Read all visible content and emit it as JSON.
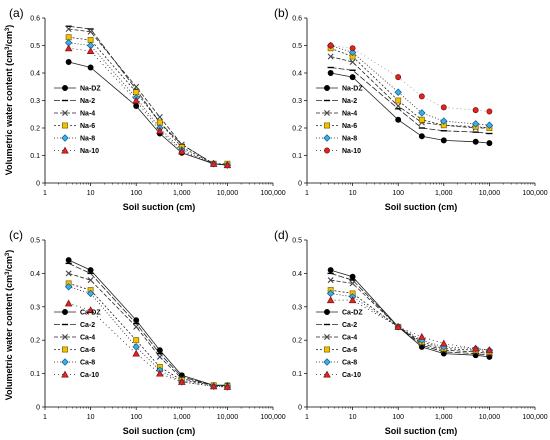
{
  "common": {
    "ylabel_text": "Volumetric water content (cm",
    "ylabel_sup": "3",
    "ylabel_mid": "/cm",
    "ylabel_end": ")",
    "xlabel": "Soil suction (cm)",
    "x_ticks": [
      "1",
      "10",
      "100",
      "1,000",
      "10,000",
      "100,000"
    ],
    "x_tick_values": [
      1,
      10,
      100,
      1000,
      10000,
      100000
    ],
    "xlim": [
      1,
      100000
    ],
    "x_scale": "log"
  },
  "colors": {
    "dz": "#000000",
    "s2": "#000000",
    "s4": "#444444",
    "s6_fill": "#f2c200",
    "s6_edge": "#806000",
    "s8_fill": "#3ab0e8",
    "s8_edge": "#105a90",
    "s10_fill": "#e02424",
    "s10_edge": "#801010"
  },
  "chart_data": [
    {
      "type": "scatter",
      "panel": "(a)",
      "ylim": [
        0,
        0.6
      ],
      "y_ticks": [
        "0",
        "0.1",
        "0.2",
        "0.3",
        "0.4",
        "0.5",
        "0.6"
      ],
      "x": [
        3.3,
        10,
        100,
        330,
        1000,
        5000,
        10000
      ],
      "series": [
        {
          "name": "Na-DZ",
          "values": [
            0.44,
            0.42,
            0.28,
            0.18,
            0.11,
            0.07,
            0.065
          ]
        },
        {
          "name": "Na-2",
          "values": [
            0.57,
            0.56,
            0.34,
            0.22,
            0.14,
            0.07,
            0.065
          ]
        },
        {
          "name": "Na-4",
          "values": [
            0.56,
            0.55,
            0.35,
            0.24,
            0.14,
            0.07,
            0.065
          ]
        },
        {
          "name": "Na-6",
          "values": [
            0.53,
            0.52,
            0.33,
            0.22,
            0.13,
            0.07,
            0.07
          ]
        },
        {
          "name": "Na-8",
          "values": [
            0.51,
            0.5,
            0.31,
            0.2,
            0.12,
            0.07,
            0.065
          ]
        },
        {
          "name": "Na-10",
          "values": [
            0.49,
            0.48,
            0.3,
            0.19,
            0.115,
            0.07,
            0.065
          ]
        }
      ],
      "legend_position": "bottom-left"
    },
    {
      "type": "scatter",
      "panel": "(b)",
      "ylim": [
        0,
        0.6
      ],
      "y_ticks": [
        "0",
        "0.1",
        "0.2",
        "0.3",
        "0.4",
        "0.5",
        "0.6"
      ],
      "x": [
        3.3,
        10,
        100,
        330,
        1000,
        5000,
        10000
      ],
      "series": [
        {
          "name": "Na-DZ",
          "values": [
            0.4,
            0.385,
            0.23,
            0.17,
            0.155,
            0.15,
            0.145
          ]
        },
        {
          "name": "Na-2",
          "values": [
            0.42,
            0.41,
            0.27,
            0.2,
            0.19,
            0.185,
            0.18
          ]
        },
        {
          "name": "Na-4",
          "values": [
            0.46,
            0.44,
            0.28,
            0.22,
            0.21,
            0.2,
            0.2
          ]
        },
        {
          "name": "Na-6",
          "values": [
            0.49,
            0.46,
            0.3,
            0.23,
            0.21,
            0.205,
            0.2
          ]
        },
        {
          "name": "Na-8",
          "values": [
            0.5,
            0.475,
            0.33,
            0.255,
            0.225,
            0.215,
            0.21
          ]
        },
        {
          "name": "Na-10",
          "values": [
            0.5,
            0.49,
            0.385,
            0.315,
            0.275,
            0.265,
            0.26
          ]
        }
      ],
      "legend_position": "bottom-left"
    },
    {
      "type": "scatter",
      "panel": "(c)",
      "ylim": [
        0,
        0.5
      ],
      "y_ticks": [
        "0",
        "0.1",
        "0.2",
        "0.3",
        "0.4",
        "0.5"
      ],
      "x": [
        3.3,
        10,
        100,
        330,
        1000,
        5000,
        10000
      ],
      "series": [
        {
          "name": "Ca-DZ",
          "values": [
            0.44,
            0.41,
            0.26,
            0.17,
            0.095,
            0.065,
            0.065
          ]
        },
        {
          "name": "Ca-2",
          "values": [
            0.43,
            0.4,
            0.25,
            0.16,
            0.09,
            0.065,
            0.065
          ]
        },
        {
          "name": "Ca-4",
          "values": [
            0.4,
            0.38,
            0.24,
            0.15,
            0.085,
            0.065,
            0.065
          ]
        },
        {
          "name": "Ca-6",
          "values": [
            0.37,
            0.35,
            0.2,
            0.12,
            0.08,
            0.065,
            0.062
          ]
        },
        {
          "name": "Ca-8",
          "values": [
            0.36,
            0.34,
            0.18,
            0.11,
            0.075,
            0.062,
            0.06
          ]
        },
        {
          "name": "Ca-10",
          "values": [
            0.31,
            0.29,
            0.16,
            0.1,
            0.075,
            0.062,
            0.06
          ]
        }
      ],
      "legend_position": "bottom-left"
    },
    {
      "type": "scatter",
      "panel": "(d)",
      "ylim": [
        0,
        0.5
      ],
      "y_ticks": [
        "0",
        "0.1",
        "0.2",
        "0.3",
        "0.4",
        "0.5"
      ],
      "x": [
        3.3,
        10,
        100,
        330,
        1000,
        5000,
        10000
      ],
      "series": [
        {
          "name": "Ca-DZ",
          "values": [
            0.41,
            0.39,
            0.24,
            0.18,
            0.16,
            0.155,
            0.15
          ]
        },
        {
          "name": "Ca-2",
          "values": [
            0.4,
            0.38,
            0.24,
            0.185,
            0.165,
            0.16,
            0.155
          ]
        },
        {
          "name": "Ca-4",
          "values": [
            0.38,
            0.37,
            0.24,
            0.19,
            0.17,
            0.165,
            0.16
          ]
        },
        {
          "name": "Ca-6",
          "values": [
            0.35,
            0.34,
            0.24,
            0.195,
            0.175,
            0.17,
            0.165
          ]
        },
        {
          "name": "Ca-8",
          "values": [
            0.34,
            0.33,
            0.24,
            0.2,
            0.18,
            0.175,
            0.17
          ]
        },
        {
          "name": "Ca-10",
          "values": [
            0.32,
            0.32,
            0.24,
            0.21,
            0.19,
            0.175,
            0.17
          ]
        }
      ],
      "legend_position": "bottom-left"
    }
  ]
}
